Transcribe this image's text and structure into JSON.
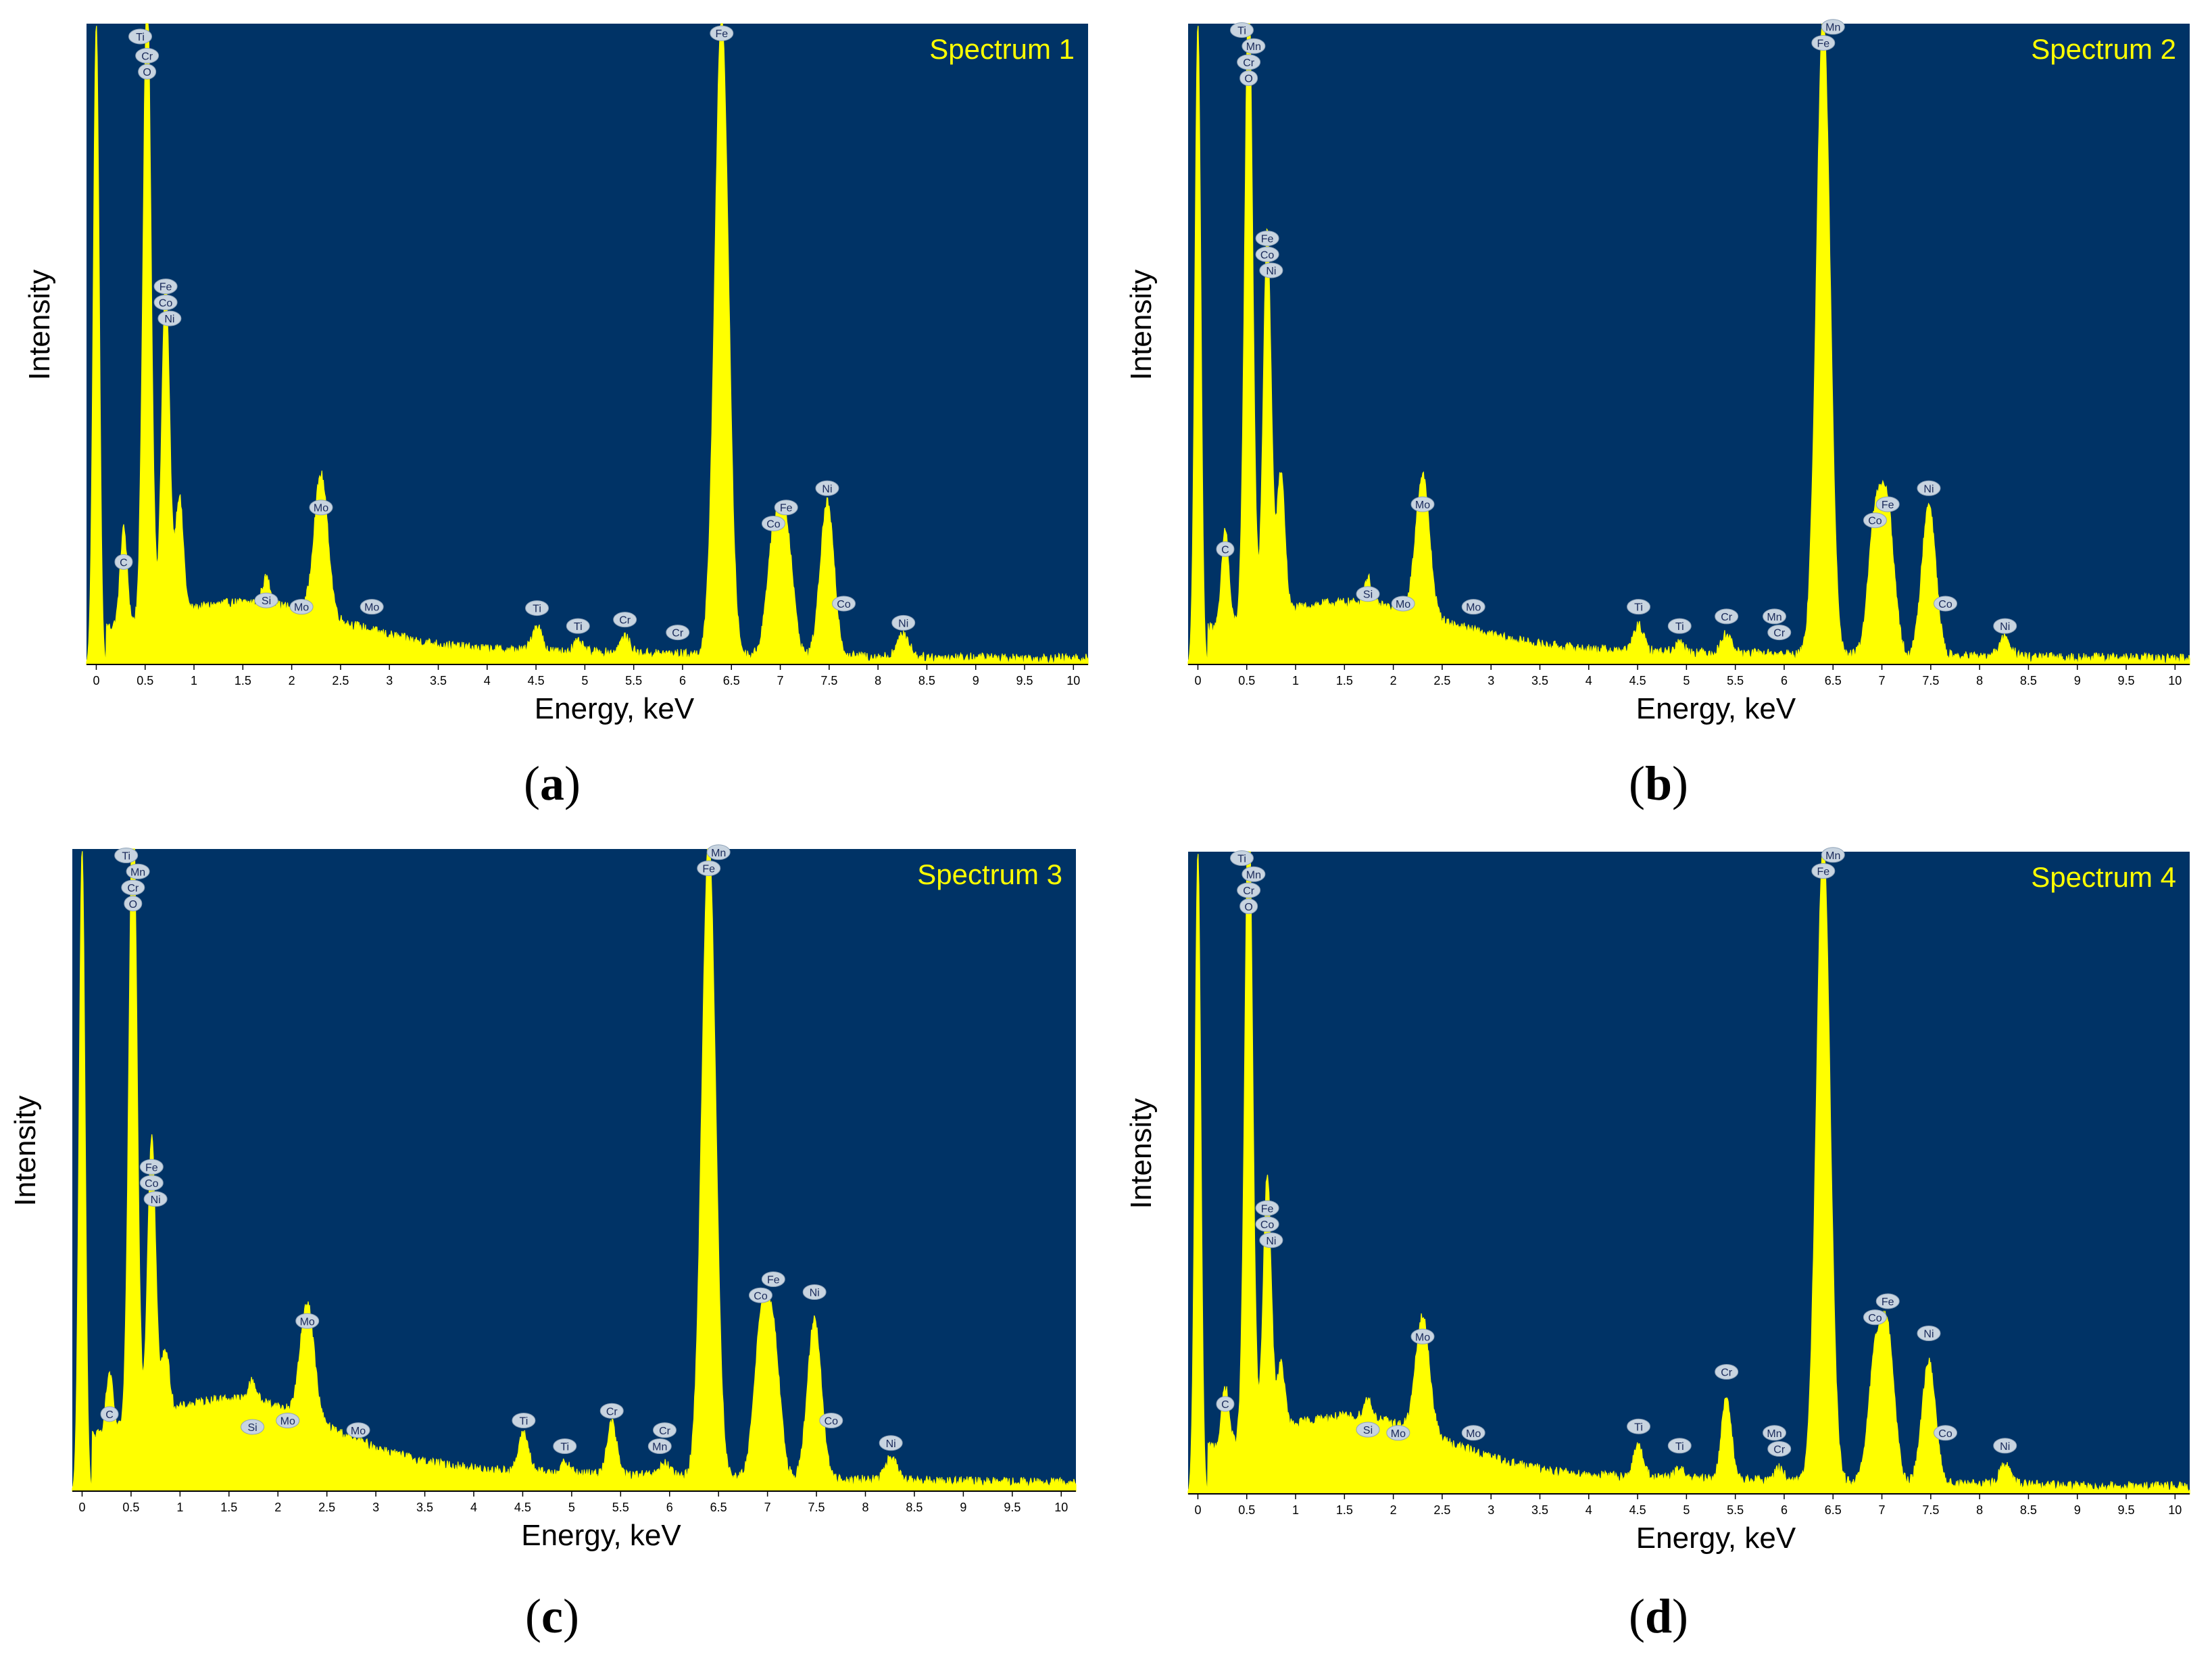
{
  "colors": {
    "plot_bg": "#003366",
    "spectrum": "#ffff00",
    "title": "#ffff00",
    "label_badge": "#c8d4e0",
    "label_text": "#1a2a5a",
    "axis_text": "#000000"
  },
  "xlabel": "Energy, keV",
  "ylabel": "Intensity",
  "x_ticks": [
    "0",
    "0.5",
    "1",
    "1.5",
    "2",
    "2.5",
    "3",
    "3.5",
    "4",
    "4.5",
    "5",
    "5.5",
    "6",
    "6.5",
    "7",
    "7.5",
    "8",
    "8.5",
    "9",
    "9.5",
    "10"
  ],
  "chart_data": [
    {
      "type": "area",
      "title": "Spectrum 1",
      "caption": "a",
      "xlabel": "Energy, keV",
      "ylabel": "Intensity",
      "xlim": [
        -0.1,
        10.15
      ],
      "ylim": [
        0,
        100
      ],
      "baseline": 4,
      "peaks": [
        {
          "x": 0.0,
          "h": 100,
          "w": 0.03
        },
        {
          "x": 0.28,
          "h": 15,
          "w": 0.035
        },
        {
          "x": 0.52,
          "h": 100,
          "w": 0.04
        },
        {
          "x": 0.71,
          "h": 52,
          "w": 0.04
        },
        {
          "x": 0.85,
          "h": 18,
          "w": 0.04
        },
        {
          "x": 1.74,
          "h": 4,
          "w": 0.04
        },
        {
          "x": 2.3,
          "h": 22,
          "w": 0.07
        },
        {
          "x": 4.51,
          "h": 4,
          "w": 0.05
        },
        {
          "x": 4.93,
          "h": 1.5,
          "w": 0.05
        },
        {
          "x": 5.41,
          "h": 2.5,
          "w": 0.05
        },
        {
          "x": 6.4,
          "h": 100,
          "w": 0.07
        },
        {
          "x": 6.93,
          "h": 17,
          "w": 0.07
        },
        {
          "x": 7.06,
          "h": 19,
          "w": 0.07
        },
        {
          "x": 7.48,
          "h": 24,
          "w": 0.07
        },
        {
          "x": 8.26,
          "h": 3.5,
          "w": 0.06
        }
      ],
      "element_labels": [
        {
          "text": "Ti",
          "x": 0.45,
          "y": 98
        },
        {
          "text": "Cr",
          "x": 0.52,
          "y": 95
        },
        {
          "text": "O",
          "x": 0.52,
          "y": 92.5
        },
        {
          "text": "C",
          "x": 0.28,
          "y": 16
        },
        {
          "text": "Fe",
          "x": 0.71,
          "y": 59
        },
        {
          "text": "Co",
          "x": 0.71,
          "y": 56.5
        },
        {
          "text": "Ni",
          "x": 0.75,
          "y": 54
        },
        {
          "text": "Si",
          "x": 1.74,
          "y": 10
        },
        {
          "text": "Mo",
          "x": 2.1,
          "y": 9
        },
        {
          "text": "Mo",
          "x": 2.3,
          "y": 24.5
        },
        {
          "text": "Mo",
          "x": 2.82,
          "y": 9
        },
        {
          "text": "Ti",
          "x": 4.51,
          "y": 8.8
        },
        {
          "text": "Ti",
          "x": 4.93,
          "y": 6
        },
        {
          "text": "Cr",
          "x": 5.41,
          "y": 7
        },
        {
          "text": "Cr",
          "x": 5.95,
          "y": 5
        },
        {
          "text": "Fe",
          "x": 6.4,
          "y": 98.5
        },
        {
          "text": "Co",
          "x": 6.93,
          "y": 22
        },
        {
          "text": "Fe",
          "x": 7.06,
          "y": 24.5
        },
        {
          "text": "Ni",
          "x": 7.48,
          "y": 27.5
        },
        {
          "text": "Co",
          "x": 7.65,
          "y": 9.5
        },
        {
          "text": "Ni",
          "x": 8.26,
          "y": 6.5
        }
      ]
    },
    {
      "type": "area",
      "title": "Spectrum 2",
      "caption": "b",
      "xlabel": "Energy, keV",
      "ylabel": "Intensity",
      "xlim": [
        -0.1,
        10.15
      ],
      "ylim": [
        0,
        100
      ],
      "baseline": 4,
      "peaks": [
        {
          "x": 0.0,
          "h": 100,
          "w": 0.03
        },
        {
          "x": 0.28,
          "h": 15,
          "w": 0.035
        },
        {
          "x": 0.52,
          "h": 100,
          "w": 0.04
        },
        {
          "x": 0.71,
          "h": 60,
          "w": 0.04
        },
        {
          "x": 0.85,
          "h": 22,
          "w": 0.04
        },
        {
          "x": 1.74,
          "h": 4,
          "w": 0.04
        },
        {
          "x": 2.3,
          "h": 22,
          "w": 0.07
        },
        {
          "x": 4.51,
          "h": 4,
          "w": 0.05
        },
        {
          "x": 4.93,
          "h": 1.5,
          "w": 0.05
        },
        {
          "x": 5.41,
          "h": 3,
          "w": 0.05
        },
        {
          "x": 6.4,
          "h": 100,
          "w": 0.07
        },
        {
          "x": 6.93,
          "h": 20,
          "w": 0.07
        },
        {
          "x": 7.06,
          "h": 21,
          "w": 0.07
        },
        {
          "x": 7.48,
          "h": 24,
          "w": 0.07
        },
        {
          "x": 8.26,
          "h": 3,
          "w": 0.06
        }
      ],
      "element_labels": [
        {
          "text": "Ti",
          "x": 0.45,
          "y": 99
        },
        {
          "text": "Mn",
          "x": 0.57,
          "y": 96.5
        },
        {
          "text": "Cr",
          "x": 0.52,
          "y": 94
        },
        {
          "text": "O",
          "x": 0.52,
          "y": 91.5
        },
        {
          "text": "C",
          "x": 0.28,
          "y": 18
        },
        {
          "text": "Fe",
          "x": 0.71,
          "y": 66.5
        },
        {
          "text": "Co",
          "x": 0.71,
          "y": 64
        },
        {
          "text": "Ni",
          "x": 0.75,
          "y": 61.5
        },
        {
          "text": "Si",
          "x": 1.74,
          "y": 11
        },
        {
          "text": "Mo",
          "x": 2.1,
          "y": 9.5
        },
        {
          "text": "Mo",
          "x": 2.3,
          "y": 25
        },
        {
          "text": "Mo",
          "x": 2.82,
          "y": 9
        },
        {
          "text": "Ti",
          "x": 4.51,
          "y": 9
        },
        {
          "text": "Ti",
          "x": 4.93,
          "y": 6
        },
        {
          "text": "Cr",
          "x": 5.41,
          "y": 7.5
        },
        {
          "text": "Mn",
          "x": 5.9,
          "y": 7.5
        },
        {
          "text": "Cr",
          "x": 5.95,
          "y": 5
        },
        {
          "text": "Mn",
          "x": 6.5,
          "y": 99.5
        },
        {
          "text": "Fe",
          "x": 6.4,
          "y": 97
        },
        {
          "text": "Co",
          "x": 6.93,
          "y": 22.5
        },
        {
          "text": "Fe",
          "x": 7.06,
          "y": 25
        },
        {
          "text": "Ni",
          "x": 7.48,
          "y": 27.5
        },
        {
          "text": "Co",
          "x": 7.65,
          "y": 9.5
        },
        {
          "text": "Ni",
          "x": 8.26,
          "y": 6
        }
      ]
    },
    {
      "type": "area",
      "title": "Spectrum 3",
      "caption": "c",
      "xlabel": "Energy, keV",
      "ylabel": "Intensity",
      "xlim": [
        -0.1,
        10.15
      ],
      "ylim": [
        0,
        100
      ],
      "baseline": 6,
      "peaks": [
        {
          "x": 0.0,
          "h": 100,
          "w": 0.03
        },
        {
          "x": 0.28,
          "h": 9,
          "w": 0.035
        },
        {
          "x": 0.52,
          "h": 100,
          "w": 0.04
        },
        {
          "x": 0.71,
          "h": 44,
          "w": 0.04
        },
        {
          "x": 0.85,
          "h": 10,
          "w": 0.04
        },
        {
          "x": 1.74,
          "h": 3,
          "w": 0.04
        },
        {
          "x": 2.3,
          "h": 18,
          "w": 0.07
        },
        {
          "x": 4.51,
          "h": 6,
          "w": 0.05
        },
        {
          "x": 4.93,
          "h": 1.5,
          "w": 0.05
        },
        {
          "x": 5.41,
          "h": 8,
          "w": 0.05
        },
        {
          "x": 5.95,
          "h": 2,
          "w": 0.05
        },
        {
          "x": 6.4,
          "h": 100,
          "w": 0.07
        },
        {
          "x": 6.93,
          "h": 22,
          "w": 0.07
        },
        {
          "x": 7.06,
          "h": 21,
          "w": 0.07
        },
        {
          "x": 7.48,
          "h": 25,
          "w": 0.07
        },
        {
          "x": 8.26,
          "h": 3.5,
          "w": 0.06
        }
      ],
      "element_labels": [
        {
          "text": "Ti",
          "x": 0.45,
          "y": 99
        },
        {
          "text": "Mn",
          "x": 0.57,
          "y": 96.5
        },
        {
          "text": "Cr",
          "x": 0.52,
          "y": 94
        },
        {
          "text": "O",
          "x": 0.52,
          "y": 91.5
        },
        {
          "text": "C",
          "x": 0.28,
          "y": 12
        },
        {
          "text": "Fe",
          "x": 0.71,
          "y": 50.5
        },
        {
          "text": "Co",
          "x": 0.71,
          "y": 48
        },
        {
          "text": "Ni",
          "x": 0.75,
          "y": 45.5
        },
        {
          "text": "Si",
          "x": 1.74,
          "y": 10
        },
        {
          "text": "Mo",
          "x": 2.1,
          "y": 11
        },
        {
          "text": "Mo",
          "x": 2.3,
          "y": 26.5
        },
        {
          "text": "Mo",
          "x": 2.82,
          "y": 9.5
        },
        {
          "text": "Ti",
          "x": 4.51,
          "y": 11
        },
        {
          "text": "Ti",
          "x": 4.93,
          "y": 7
        },
        {
          "text": "Cr",
          "x": 5.41,
          "y": 12.5
        },
        {
          "text": "Cr",
          "x": 5.95,
          "y": 9.5
        },
        {
          "text": "Mn",
          "x": 5.9,
          "y": 7
        },
        {
          "text": "Mn",
          "x": 6.5,
          "y": 99.5
        },
        {
          "text": "Fe",
          "x": 6.4,
          "y": 97
        },
        {
          "text": "Co",
          "x": 6.93,
          "y": 30.5
        },
        {
          "text": "Fe",
          "x": 7.06,
          "y": 33
        },
        {
          "text": "Ni",
          "x": 7.48,
          "y": 31
        },
        {
          "text": "Co",
          "x": 7.65,
          "y": 11
        },
        {
          "text": "Ni",
          "x": 8.26,
          "y": 7.5
        }
      ]
    },
    {
      "type": "area",
      "title": "Spectrum 4",
      "caption": "d",
      "xlabel": "Energy, keV",
      "ylabel": "Intensity",
      "xlim": [
        -0.1,
        10.15
      ],
      "ylim": [
        0,
        100
      ],
      "baseline": 5,
      "peaks": [
        {
          "x": 0.0,
          "h": 100,
          "w": 0.03
        },
        {
          "x": 0.28,
          "h": 9,
          "w": 0.035
        },
        {
          "x": 0.52,
          "h": 100,
          "w": 0.04
        },
        {
          "x": 0.71,
          "h": 40,
          "w": 0.04
        },
        {
          "x": 0.85,
          "h": 10,
          "w": 0.04
        },
        {
          "x": 1.74,
          "h": 3,
          "w": 0.04
        },
        {
          "x": 2.3,
          "h": 18,
          "w": 0.07
        },
        {
          "x": 4.51,
          "h": 5,
          "w": 0.05
        },
        {
          "x": 4.93,
          "h": 1.5,
          "w": 0.05
        },
        {
          "x": 5.41,
          "h": 13,
          "w": 0.05
        },
        {
          "x": 5.95,
          "h": 2,
          "w": 0.05
        },
        {
          "x": 6.4,
          "h": 100,
          "w": 0.07
        },
        {
          "x": 6.93,
          "h": 18,
          "w": 0.07
        },
        {
          "x": 7.06,
          "h": 22,
          "w": 0.07
        },
        {
          "x": 7.48,
          "h": 19,
          "w": 0.07
        },
        {
          "x": 8.26,
          "h": 3,
          "w": 0.06
        }
      ],
      "element_labels": [
        {
          "text": "Ti",
          "x": 0.45,
          "y": 99
        },
        {
          "text": "Mn",
          "x": 0.57,
          "y": 96.5
        },
        {
          "text": "Cr",
          "x": 0.52,
          "y": 94
        },
        {
          "text": "O",
          "x": 0.52,
          "y": 91.5
        },
        {
          "text": "C",
          "x": 0.28,
          "y": 14
        },
        {
          "text": "Fe",
          "x": 0.71,
          "y": 44.5
        },
        {
          "text": "Co",
          "x": 0.71,
          "y": 42
        },
        {
          "text": "Ni",
          "x": 0.75,
          "y": 39.5
        },
        {
          "text": "Si",
          "x": 1.74,
          "y": 10
        },
        {
          "text": "Mo",
          "x": 2.05,
          "y": 9.5
        },
        {
          "text": "Mo",
          "x": 2.3,
          "y": 24.5
        },
        {
          "text": "Mo",
          "x": 2.82,
          "y": 9.5
        },
        {
          "text": "Ti",
          "x": 4.51,
          "y": 10.5
        },
        {
          "text": "Ti",
          "x": 4.93,
          "y": 7.5
        },
        {
          "text": "Cr",
          "x": 5.41,
          "y": 19
        },
        {
          "text": "Mn",
          "x": 5.9,
          "y": 9.5
        },
        {
          "text": "Cr",
          "x": 5.95,
          "y": 7
        },
        {
          "text": "Mn",
          "x": 6.5,
          "y": 99.5
        },
        {
          "text": "Fe",
          "x": 6.4,
          "y": 97
        },
        {
          "text": "Co",
          "x": 6.93,
          "y": 27.5
        },
        {
          "text": "Fe",
          "x": 7.06,
          "y": 30
        },
        {
          "text": "Ni",
          "x": 7.48,
          "y": 25
        },
        {
          "text": "Co",
          "x": 7.65,
          "y": 9.5
        },
        {
          "text": "Ni",
          "x": 8.26,
          "y": 7.5
        }
      ]
    }
  ]
}
